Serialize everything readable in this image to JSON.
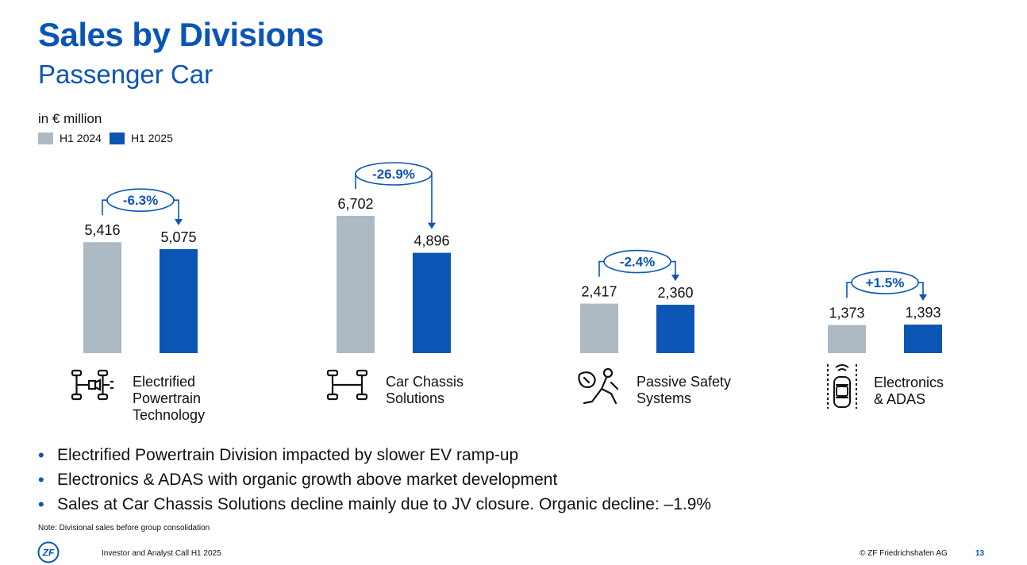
{
  "header": {
    "title": "Sales by Divisions",
    "subtitle": "Passenger Car"
  },
  "unit_label": "in € million",
  "colors": {
    "h1_2024": "#adb9c3",
    "h1_2025": "#0b55b5",
    "accent": "#0b55b5"
  },
  "chart_data": {
    "type": "bar",
    "title": "",
    "ylabel": "",
    "ylim": [
      0,
      7500
    ],
    "series": [
      {
        "name": "H1 2024",
        "values": [
          5416,
          6702,
          2417,
          1373
        ]
      },
      {
        "name": "H1 2025",
        "values": [
          5075,
          4896,
          2360,
          1393
        ]
      }
    ],
    "value_labels": [
      [
        "5,416",
        "5,075"
      ],
      [
        "6,702",
        "4,896"
      ],
      [
        "2,417",
        "2,360"
      ],
      [
        "1,373",
        "1,393"
      ]
    ],
    "change_labels": [
      "-6.3%",
      "-26.9%",
      "-2.4%",
      "+1.5%"
    ],
    "legend": "top-left",
    "grid": false
  },
  "divisions": [
    {
      "label_lines": [
        "Electrified",
        "Powertrain",
        "Technology"
      ],
      "icon": "powertrain-icon"
    },
    {
      "label_lines": [
        "Car Chassis",
        "Solutions"
      ],
      "icon": "chassis-icon"
    },
    {
      "label_lines": [
        "Passive Safety",
        "Systems"
      ],
      "icon": "passive-safety-icon"
    },
    {
      "label_lines": [
        "Electronics",
        "& ADAS"
      ],
      "icon": "adas-car-icon"
    }
  ],
  "bullets": [
    "Electrified Powertrain Division impacted by slower EV ramp-up",
    "Electronics & ADAS with organic growth above market development",
    "Sales at Car Chassis Solutions decline mainly due to JV closure. Organic decline: –1.9%"
  ],
  "note": "Note: Divisional sales before group consolidation",
  "footer": {
    "left": "Investor and Analyst Call H1 2025",
    "right": "© ZF Friedrichshafen AG",
    "page": "13",
    "logo_text": "ZF"
  }
}
